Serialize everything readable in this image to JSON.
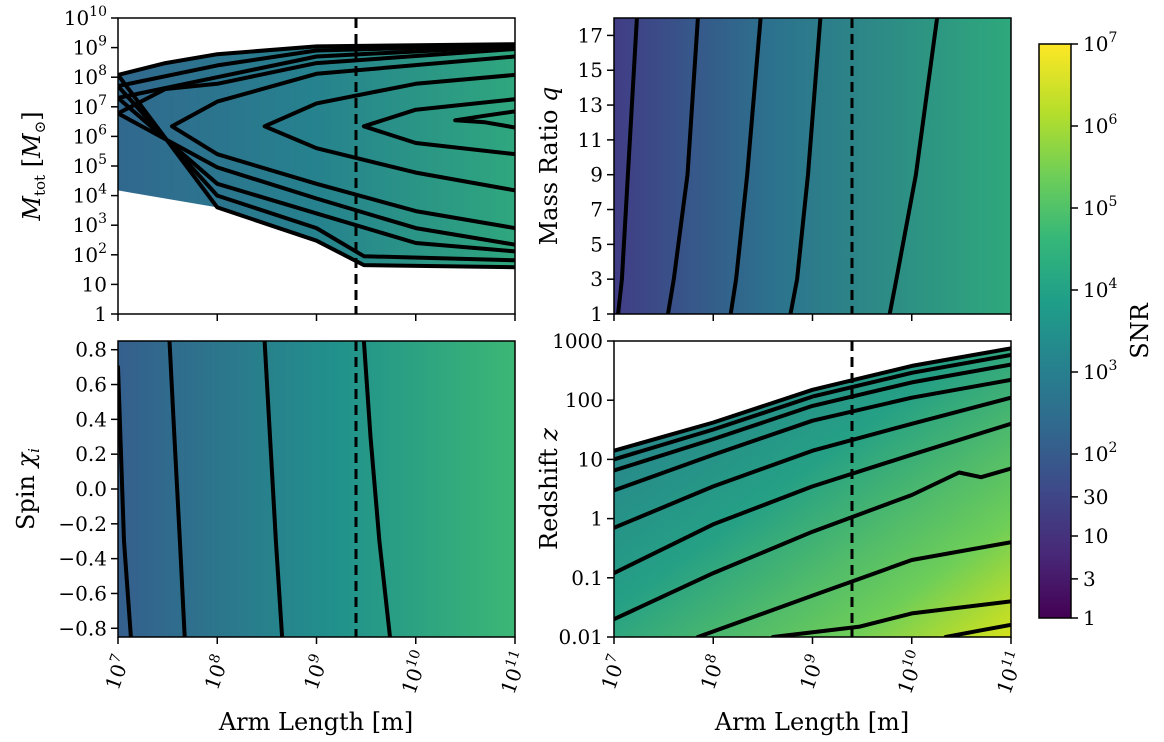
{
  "chart_data": [
    {
      "type": "heatmap",
      "panel": "top-left",
      "ylabel": "M_tot [M_⊙]",
      "x_scale": "log",
      "xlim": [
        10000000.0,
        100000000000.0
      ],
      "y_scale": "log",
      "ylim": [
        1,
        10000000000.0
      ],
      "x_ticks": [
        10000000.0,
        100000000.0,
        1000000000.0,
        10000000000.0,
        100000000000.0
      ],
      "x_tick_labels_shown": false,
      "y_ticks": [
        "1",
        "10",
        "10^2",
        "10^3",
        "10^4",
        "10^5",
        "10^6",
        "10^7",
        "10^8",
        "10^9",
        "10^10"
      ],
      "reference_line": {
        "x": 2500000000.0,
        "style": "dashed"
      },
      "peak": {
        "x": 30000000000.0,
        "y": 3000000.0
      },
      "contours": [
        {
          "upper": [
            [
              10000000.0,
              120000000.0
            ],
            [
              30000000.0,
              300000000.0
            ],
            [
              100000000.0,
              600000000.0
            ],
            [
              1000000000.0,
              1100000000.0
            ],
            [
              100000000000.0,
              1300000000.0
            ]
          ],
          "lower": [
            [
              10000000.0,
              15000.0
            ],
            [
              100000000.0,
              4000.0
            ],
            [
              1000000000.0,
              300.0
            ],
            [
              3000000000.0,
              45
            ],
            [
              100000000000.0,
              38
            ]
          ]
        },
        {
          "upper": [
            [
              10000000.0,
              50000000.0
            ],
            [
              100000000.0,
              250000000.0
            ],
            [
              1000000000.0,
              800000000.0
            ],
            [
              100000000000.0,
              1200000000.0
            ]
          ],
          "lower": [
            [
              10000000.0,
              40000.0
            ],
            [
              100000000.0,
              10000.0
            ],
            [
              1000000000.0,
              800.0
            ],
            [
              3000000000.0,
              90
            ],
            [
              100000000000.0,
              65
            ]
          ]
        },
        {
          "upper": [
            [
              10000000.0,
              20000000.0
            ],
            [
              100000000.0,
              100000000.0
            ],
            [
              1000000000.0,
              500000000.0
            ],
            [
              100000000000.0,
              1100000000.0
            ]
          ],
          "lower": [
            [
              10000000.0,
              150000.0
            ],
            [
              100000000.0,
              25000.0
            ],
            [
              1000000000.0,
              2500.0
            ],
            [
              10000000000.0,
              250.0
            ],
            [
              100000000000.0,
              130.0
            ]
          ]
        },
        {
          "upper": [
            [
              10000000.0,
              6000000.0
            ],
            [
              30000000.0,
              40000000.0
            ],
            [
              100000000.0,
              60000000.0
            ],
            [
              1000000000.0,
              300000000.0
            ],
            [
              100000000000.0,
              900000000.0
            ]
          ],
          "lower": [
            [
              10000000.0,
              700000.0
            ],
            [
              100000000.0,
              90000.0
            ],
            [
              1000000000.0,
              8000.0
            ],
            [
              10000000000.0,
              800.0
            ],
            [
              100000000000.0,
              220.0
            ]
          ]
        },
        {
          "upper": [
            [
              35000000.0,
              2200000.0
            ],
            [
              100000000.0,
              15000000.0
            ],
            [
              1000000000.0,
              130000000.0
            ],
            [
              100000000000.0,
              500000000.0
            ]
          ],
          "lower": [
            [
              35000000.0,
              2200000.0
            ],
            [
              100000000.0,
              250000.0
            ],
            [
              1000000000.0,
              25000.0
            ],
            [
              10000000000.0,
              3000.0
            ],
            [
              100000000000.0,
              800.0
            ]
          ]
        },
        {
          "upper": [
            [
              300000000.0,
              2200000.0
            ],
            [
              1000000000.0,
              13000000.0
            ],
            [
              10000000000.0,
              60000000.0
            ],
            [
              100000000000.0,
              120000000.0
            ]
          ],
          "lower": [
            [
              300000000.0,
              2200000.0
            ],
            [
              1000000000.0,
              400000.0
            ],
            [
              10000000000.0,
              60000.0
            ],
            [
              100000000000.0,
              15000.0
            ]
          ]
        },
        {
          "upper": [
            [
              3000000000.0,
              2200000.0
            ],
            [
              10000000000.0,
              8000000.0
            ],
            [
              100000000000.0,
              18000000.0
            ]
          ],
          "lower": [
            [
              3000000000.0,
              2200000.0
            ],
            [
              10000000000.0,
              600000.0
            ],
            [
              100000000000.0,
              250000.0
            ]
          ]
        },
        {
          "upper": [
            [
              25000000000.0,
              3500000.0
            ],
            [
              50000000000.0,
              5000000.0
            ],
            [
              100000000000.0,
              7000000.0
            ]
          ],
          "lower": [
            [
              25000000000.0,
              3500000.0
            ],
            [
              50000000000.0,
              3000000.0
            ],
            [
              100000000000.0,
              2000000.0
            ]
          ]
        }
      ]
    },
    {
      "type": "heatmap",
      "panel": "top-right",
      "ylabel": "Mass Ratio q",
      "x_scale": "log",
      "xlim": [
        10000000.0,
        100000000000.0
      ],
      "y_scale": "linear",
      "ylim": [
        1,
        18
      ],
      "x_ticks": [
        10000000.0,
        100000000.0,
        1000000000.0,
        10000000000.0,
        100000000000.0
      ],
      "x_tick_labels_shown": false,
      "y_ticks": [
        "1",
        "3",
        "5",
        "7",
        "9",
        "11",
        "13",
        "15",
        "17"
      ],
      "reference_line": {
        "x": 2500000000.0,
        "style": "dashed"
      },
      "contours": [
        {
          "line": [
            [
              11000000.0,
              1
            ],
            [
              12000000.0,
              3
            ],
            [
              17000000.0,
              18
            ]
          ]
        },
        {
          "line": [
            [
              35000000.0,
              1
            ],
            [
              40000000.0,
              3
            ],
            [
              55000000.0,
              9
            ],
            [
              70000000.0,
              18
            ]
          ]
        },
        {
          "line": [
            [
              150000000.0,
              1
            ],
            [
              170000000.0,
              3
            ],
            [
              220000000.0,
              9
            ],
            [
              300000000.0,
              18
            ]
          ]
        },
        {
          "line": [
            [
              600000000.0,
              1
            ],
            [
              700000000.0,
              3
            ],
            [
              900000000.0,
              9
            ],
            [
              1200000000.0,
              18
            ]
          ]
        },
        {
          "line": [
            [
              6000000000.0,
              1
            ],
            [
              7000000000.0,
              3
            ],
            [
              11000000000.0,
              9
            ],
            [
              18000000000.0,
              18
            ]
          ]
        }
      ]
    },
    {
      "type": "heatmap",
      "panel": "bottom-left",
      "ylabel": "Spin χ_i",
      "xlabel": "Arm Length [m]",
      "x_scale": "log",
      "xlim": [
        10000000.0,
        100000000000.0
      ],
      "y_scale": "linear",
      "ylim": [
        -0.85,
        0.85
      ],
      "x_ticks": [
        10000000.0,
        100000000.0,
        1000000000.0,
        10000000000.0,
        100000000000.0
      ],
      "x_tick_labels": [
        "10^7",
        "10^8",
        "10^9",
        "10^10",
        "10^11"
      ],
      "y_ticks": [
        "0.8",
        "0.6",
        "0.4",
        "0.2",
        "0.0",
        "−0.2",
        "−0.4",
        "−0.6",
        "−0.8"
      ],
      "reference_line": {
        "x": 2500000000.0,
        "style": "dashed"
      },
      "contours": [
        {
          "line": [
            [
              10000000.0,
              0.7
            ],
            [
              11500000.0,
              -0.3
            ],
            [
              13500000.0,
              -0.85
            ]
          ]
        },
        {
          "line": [
            [
              33000000.0,
              0.85
            ],
            [
              37000000.0,
              0.3
            ],
            [
              42000000.0,
              -0.3
            ],
            [
              47000000.0,
              -0.85
            ]
          ]
        },
        {
          "line": [
            [
              300000000.0,
              0.85
            ],
            [
              340000000.0,
              0.3
            ],
            [
              390000000.0,
              -0.3
            ],
            [
              450000000.0,
              -0.85
            ]
          ]
        },
        {
          "line": [
            [
              3000000000.0,
              0.85
            ],
            [
              3500000000.0,
              0.3
            ],
            [
              4300000000.0,
              -0.3
            ],
            [
              5500000000.0,
              -0.85
            ]
          ]
        }
      ]
    },
    {
      "type": "heatmap",
      "panel": "bottom-right",
      "ylabel": "Redshift z",
      "xlabel": "Arm Length [m]",
      "x_scale": "log",
      "xlim": [
        10000000.0,
        100000000000.0
      ],
      "y_scale": "log",
      "ylim": [
        0.01,
        1000
      ],
      "x_ticks": [
        10000000.0,
        100000000.0,
        1000000000.0,
        10000000000.0,
        100000000000.0
      ],
      "x_tick_labels": [
        "10^7",
        "10^8",
        "10^9",
        "10^10",
        "10^11"
      ],
      "y_ticks": [
        "0.01",
        "0.1",
        "1",
        "10",
        "100",
        "1000"
      ],
      "reference_line": {
        "x": 2500000000.0,
        "style": "dashed"
      },
      "contours": [
        {
          "line": [
            [
              10000000.0,
              14
            ],
            [
              100000000.0,
              42
            ],
            [
              1000000000.0,
              150
            ],
            [
              10000000000.0,
              380
            ],
            [
              100000000000.0,
              750
            ]
          ]
        },
        {
          "line": [
            [
              10000000.0,
              10
            ],
            [
              100000000.0,
              32
            ],
            [
              1000000000.0,
              115
            ],
            [
              10000000000.0,
              290
            ],
            [
              100000000000.0,
              580
            ]
          ]
        },
        {
          "line": [
            [
              10000000.0,
              6.5
            ],
            [
              100000000.0,
              22
            ],
            [
              1000000000.0,
              80
            ],
            [
              10000000000.0,
              200
            ],
            [
              100000000000.0,
              400
            ]
          ]
        },
        {
          "line": [
            [
              10000000.0,
              3
            ],
            [
              100000000.0,
              12
            ],
            [
              1000000000.0,
              45
            ],
            [
              10000000000.0,
              110
            ],
            [
              100000000000.0,
              220
            ]
          ]
        },
        {
          "line": [
            [
              10000000.0,
              0.7
            ],
            [
              100000000.0,
              3.5
            ],
            [
              1000000000.0,
              14
            ],
            [
              10000000000.0,
              40
            ],
            [
              100000000000.0,
              110
            ]
          ]
        },
        {
          "line": [
            [
              10000000.0,
              0.12
            ],
            [
              100000000.0,
              0.8
            ],
            [
              1000000000.0,
              3.5
            ],
            [
              10000000000.0,
              12
            ],
            [
              100000000000.0,
              40
            ]
          ]
        },
        {
          "line": [
            [
              10000000.0,
              0.02
            ],
            [
              100000000.0,
              0.12
            ],
            [
              1000000000.0,
              0.6
            ],
            [
              10000000000.0,
              2.5
            ],
            [
              30000000000.0,
              6
            ],
            [
              50000000000.0,
              5
            ],
            [
              100000000000.0,
              7
            ]
          ]
        },
        {
          "line": [
            [
              70000000.0,
              0.01
            ],
            [
              1000000000.0,
              0.05
            ],
            [
              10000000000.0,
              0.2
            ],
            [
              100000000000.0,
              0.4
            ]
          ]
        },
        {
          "line": [
            [
              400000000.0,
              0.01
            ],
            [
              3000000000.0,
              0.015
            ],
            [
              10000000000.0,
              0.025
            ],
            [
              100000000000.0,
              0.04
            ]
          ]
        },
        {
          "line": [
            [
              22000000000.0,
              0.01
            ],
            [
              50000000000.0,
              0.013
            ],
            [
              100000000000.0,
              0.016
            ]
          ]
        }
      ]
    },
    {
      "type": "colorbar",
      "label": "SNR",
      "scale": "log",
      "range": [
        1,
        10000000.0
      ],
      "tick_values": [
        1,
        3,
        10,
        30,
        100,
        1000,
        10000,
        100000,
        1000000,
        10000000
      ],
      "tick_labels": [
        "1",
        "3",
        "10",
        "30",
        "10^2",
        "10^3",
        "10^4",
        "10^5",
        "10^6",
        "10^7"
      ],
      "colormap": "viridis"
    }
  ],
  "colors": {
    "viridis": [
      "#440154",
      "#482878",
      "#3e4989",
      "#31688e",
      "#26828e",
      "#1f9e89",
      "#35b779",
      "#6ece58",
      "#b5de2b",
      "#fde725"
    ],
    "contour": "#000000",
    "reference_line": "#000000"
  }
}
